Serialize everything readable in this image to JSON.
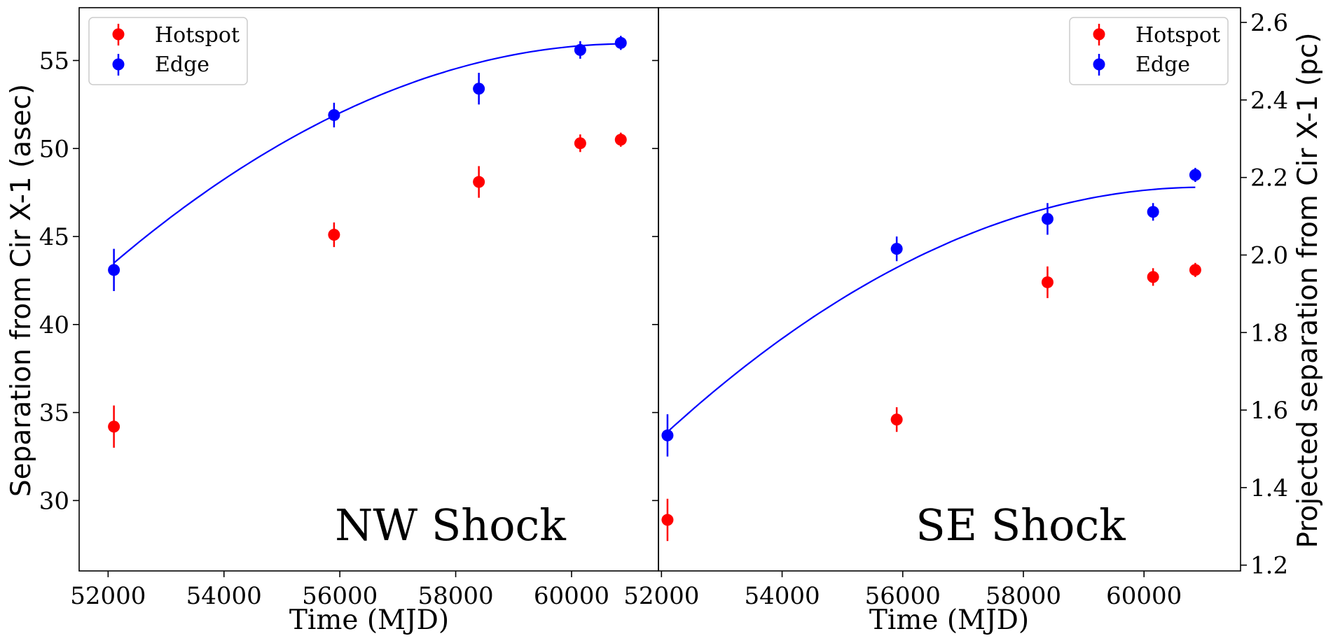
{
  "chart_data": [
    {
      "type": "scatter",
      "panel": "left",
      "label": "NW Shock",
      "xlabel": "Time (MJD)",
      "ylabel": "Separation from Cir X-1 (asec)",
      "xlim": [
        51500,
        61500
      ],
      "ylim": [
        26.0,
        58.0
      ],
      "xticks": [
        52000,
        54000,
        56000,
        58000,
        60000
      ],
      "yticks": [
        30,
        35,
        40,
        45,
        50,
        55
      ],
      "legend": {
        "position": "top-left",
        "entries": [
          "Hotspot",
          "Edge"
        ]
      },
      "series": [
        {
          "name": "Hotspot",
          "color": "#ff0000",
          "points": [
            {
              "x": 52100,
              "y": 34.2,
              "err": 1.2
            },
            {
              "x": 55900,
              "y": 45.1,
              "err": 0.7
            },
            {
              "x": 58400,
              "y": 48.1,
              "err": 0.9
            },
            {
              "x": 60150,
              "y": 50.3,
              "err": 0.5
            },
            {
              "x": 60850,
              "y": 50.5,
              "err": 0.4
            }
          ]
        },
        {
          "name": "Edge",
          "color": "#0000ff",
          "points": [
            {
              "x": 52100,
              "y": 43.1,
              "err": 1.2
            },
            {
              "x": 55900,
              "y": 51.9,
              "err": 0.7
            },
            {
              "x": 58400,
              "y": 53.4,
              "err": 0.9
            },
            {
              "x": 60150,
              "y": 55.6,
              "err": 0.5
            },
            {
              "x": 60850,
              "y": 56.0,
              "err": 0.4
            }
          ]
        }
      ],
      "fit": {
        "color": "#0000ff",
        "x": [
          52100,
          60850
        ],
        "peak_x": 61000,
        "y_start": 43.5,
        "y_peak": 55.95
      }
    },
    {
      "type": "scatter",
      "panel": "right",
      "label": "SE Shock",
      "xlabel": "Time (MJD)",
      "ylabel": "Projected separation from Cir X-1 (pc)",
      "xlim": [
        51950,
        61600
      ],
      "ylim": [
        26.0,
        58.0
      ],
      "xticks": [
        52000,
        54000,
        56000,
        58000,
        60000
      ],
      "y2lim": [
        1.185,
        2.638
      ],
      "y2ticks": [
        "1.2",
        "1.4",
        "1.6",
        "1.8",
        "2.0",
        "2.2",
        "2.4",
        "2.6"
      ],
      "legend": {
        "position": "top-right",
        "entries": [
          "Hotspot",
          "Edge"
        ]
      },
      "series": [
        {
          "name": "Hotspot",
          "color": "#ff0000",
          "points": [
            {
              "x": 52100,
              "y": 28.9,
              "err": 1.2
            },
            {
              "x": 55900,
              "y": 34.6,
              "err": 0.7
            },
            {
              "x": 58400,
              "y": 42.4,
              "err": 0.9
            },
            {
              "x": 60150,
              "y": 42.7,
              "err": 0.5
            },
            {
              "x": 60850,
              "y": 43.1,
              "err": 0.4
            }
          ]
        },
        {
          "name": "Edge",
          "color": "#0000ff",
          "points": [
            {
              "x": 52100,
              "y": 33.7,
              "err": 1.2
            },
            {
              "x": 55900,
              "y": 44.3,
              "err": 0.7
            },
            {
              "x": 58400,
              "y": 46.0,
              "err": 0.9
            },
            {
              "x": 60150,
              "y": 46.4,
              "err": 0.5
            },
            {
              "x": 60850,
              "y": 48.5,
              "err": 0.4
            }
          ]
        }
      ],
      "fit": {
        "color": "#0000ff",
        "x": [
          52100,
          60850
        ],
        "peak_x": 61000,
        "y_start": 33.9,
        "y_peak": 47.8
      }
    }
  ]
}
